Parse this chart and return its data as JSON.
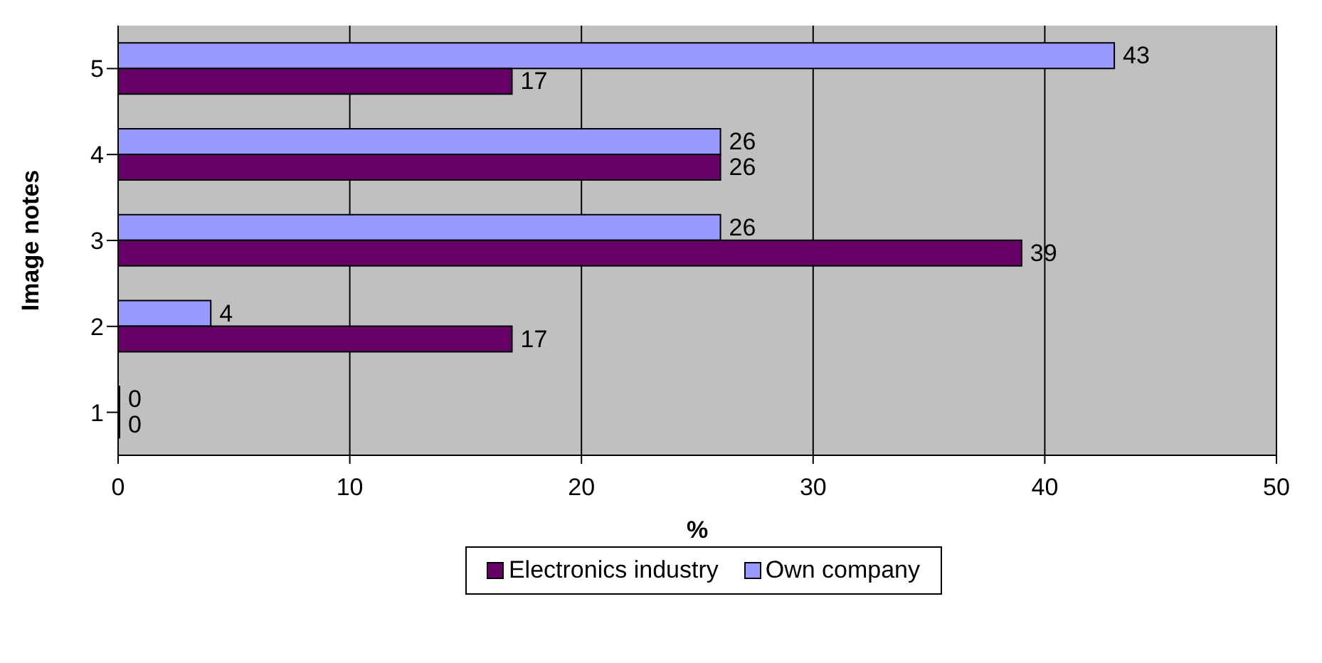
{
  "chart_data": {
    "type": "bar",
    "orientation": "horizontal",
    "xlabel": "%",
    "ylabel": "Image notes",
    "categories": [
      "5",
      "4",
      "3",
      "2",
      "1"
    ],
    "series": [
      {
        "name": "Electronics industry",
        "color": "#660066",
        "values": [
          17,
          26,
          39,
          17,
          0
        ]
      },
      {
        "name": "Own company",
        "color": "#9999ff",
        "values": [
          43,
          26,
          26,
          4,
          0
        ]
      }
    ],
    "xlim": [
      0,
      50
    ],
    "xticks": [
      0,
      10,
      20,
      30,
      40,
      50
    ],
    "grid": "x",
    "legend": "bottom",
    "data_labels": true
  }
}
